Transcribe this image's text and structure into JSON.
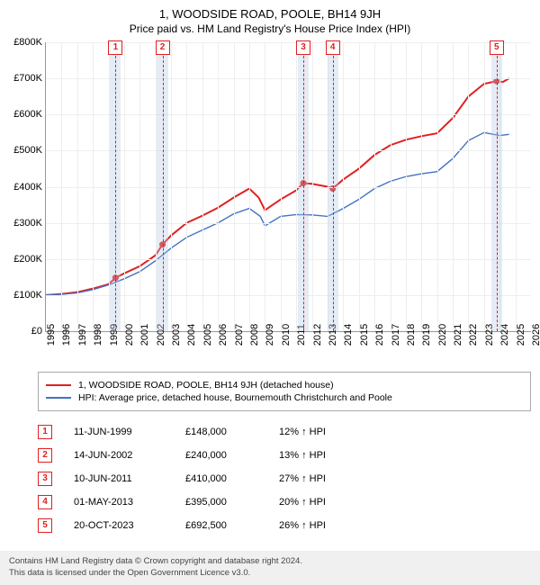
{
  "title": "1, WOODSIDE ROAD, POOLE, BH14 9JH",
  "subtitle": "Price paid vs. HM Land Registry's House Price Index (HPI)",
  "chart": {
    "type": "line",
    "background_color": "#ffffff",
    "grid_color": "#eeeeee",
    "axis_color": "#999999",
    "label_fontsize": 11,
    "y": {
      "min": 0,
      "max": 800000,
      "step": 100000,
      "labels": [
        "£0",
        "£100K",
        "£200K",
        "£300K",
        "£400K",
        "£500K",
        "£600K",
        "£700K",
        "£800K"
      ]
    },
    "x": {
      "min": 1995,
      "max": 2026,
      "step": 1,
      "labels": [
        "1995",
        "1996",
        "1997",
        "1998",
        "1999",
        "2000",
        "2001",
        "2002",
        "2003",
        "2004",
        "2005",
        "2006",
        "2007",
        "2008",
        "2009",
        "2010",
        "2011",
        "2012",
        "2013",
        "2014",
        "2015",
        "2016",
        "2017",
        "2018",
        "2019",
        "2020",
        "2021",
        "2022",
        "2023",
        "2024",
        "2025",
        "2026"
      ]
    },
    "series": [
      {
        "id": "property",
        "label": "1, WOODSIDE ROAD, POOLE, BH14 9JH (detached house)",
        "color": "#e02020",
        "width": 2,
        "points": [
          [
            1995,
            100000
          ],
          [
            1996,
            103000
          ],
          [
            1997,
            108000
          ],
          [
            1998,
            118000
          ],
          [
            1999.0,
            130000
          ],
          [
            1999.45,
            148000
          ],
          [
            2000,
            160000
          ],
          [
            2001,
            180000
          ],
          [
            2002,
            210000
          ],
          [
            2002.45,
            240000
          ],
          [
            2003,
            265000
          ],
          [
            2004,
            300000
          ],
          [
            2005,
            320000
          ],
          [
            2006,
            342000
          ],
          [
            2007,
            370000
          ],
          [
            2008,
            395000
          ],
          [
            2008.6,
            370000
          ],
          [
            2009,
            335000
          ],
          [
            2010,
            365000
          ],
          [
            2011,
            390000
          ],
          [
            2011.45,
            410000
          ],
          [
            2012,
            408000
          ],
          [
            2013,
            400000
          ],
          [
            2013.33,
            395000
          ],
          [
            2014,
            420000
          ],
          [
            2015,
            450000
          ],
          [
            2016,
            488000
          ],
          [
            2017,
            515000
          ],
          [
            2018,
            530000
          ],
          [
            2019,
            540000
          ],
          [
            2020,
            548000
          ],
          [
            2021,
            590000
          ],
          [
            2022,
            650000
          ],
          [
            2023,
            685000
          ],
          [
            2023.8,
            692500
          ],
          [
            2024.2,
            690000
          ],
          [
            2024.6,
            700000
          ]
        ],
        "markers": [
          [
            1999.45,
            148000
          ],
          [
            2002.45,
            240000
          ],
          [
            2011.45,
            410000
          ],
          [
            2013.33,
            395000
          ],
          [
            2023.8,
            692500
          ]
        ]
      },
      {
        "id": "hpi",
        "label": "HPI: Average price, detached house, Bournemouth Christchurch and Poole",
        "color": "#4472c4",
        "width": 1.4,
        "points": [
          [
            1995,
            100000
          ],
          [
            1996,
            102000
          ],
          [
            1997,
            106000
          ],
          [
            1998,
            115000
          ],
          [
            1999,
            128000
          ],
          [
            2000,
            145000
          ],
          [
            2001,
            165000
          ],
          [
            2002,
            195000
          ],
          [
            2003,
            230000
          ],
          [
            2004,
            260000
          ],
          [
            2005,
            280000
          ],
          [
            2006,
            300000
          ],
          [
            2007,
            325000
          ],
          [
            2008,
            340000
          ],
          [
            2008.7,
            318000
          ],
          [
            2009,
            292000
          ],
          [
            2010,
            318000
          ],
          [
            2011,
            323000
          ],
          [
            2012,
            322000
          ],
          [
            2013,
            318000
          ],
          [
            2014,
            340000
          ],
          [
            2015,
            365000
          ],
          [
            2016,
            395000
          ],
          [
            2017,
            415000
          ],
          [
            2018,
            428000
          ],
          [
            2019,
            436000
          ],
          [
            2020,
            442000
          ],
          [
            2021,
            478000
          ],
          [
            2022,
            528000
          ],
          [
            2023,
            550000
          ],
          [
            2024,
            542000
          ],
          [
            2024.6,
            545000
          ]
        ]
      }
    ],
    "marker_bands": {
      "color": "rgba(180,200,230,0.35)",
      "half_width_years": 0.35
    },
    "transactions": [
      {
        "n": "1",
        "x": 1999.45,
        "date": "11-JUN-1999",
        "price": "£148,000",
        "diff": "12% ↑ HPI"
      },
      {
        "n": "2",
        "x": 2002.45,
        "date": "14-JUN-2002",
        "price": "£240,000",
        "diff": "13% ↑ HPI"
      },
      {
        "n": "3",
        "x": 2011.45,
        "date": "10-JUN-2011",
        "price": "£410,000",
        "diff": "27% ↑ HPI"
      },
      {
        "n": "4",
        "x": 2013.33,
        "date": "01-MAY-2013",
        "price": "£395,000",
        "diff": "20% ↑ HPI"
      },
      {
        "n": "5",
        "x": 2023.8,
        "date": "20-OCT-2023",
        "price": "£692,500",
        "diff": "26% ↑ HPI"
      }
    ]
  },
  "legend": {
    "rows": [
      {
        "color": "#e02020",
        "label_path": "chart.series.0.label"
      },
      {
        "color": "#4472c4",
        "label_path": "chart.series.1.label"
      }
    ]
  },
  "footer": {
    "line1": "Contains HM Land Registry data © Crown copyright and database right 2024.",
    "line2": "This data is licensed under the Open Government Licence v3.0."
  },
  "colors": {
    "marker_border": "#e02020",
    "footer_bg": "#f0f0f0"
  }
}
